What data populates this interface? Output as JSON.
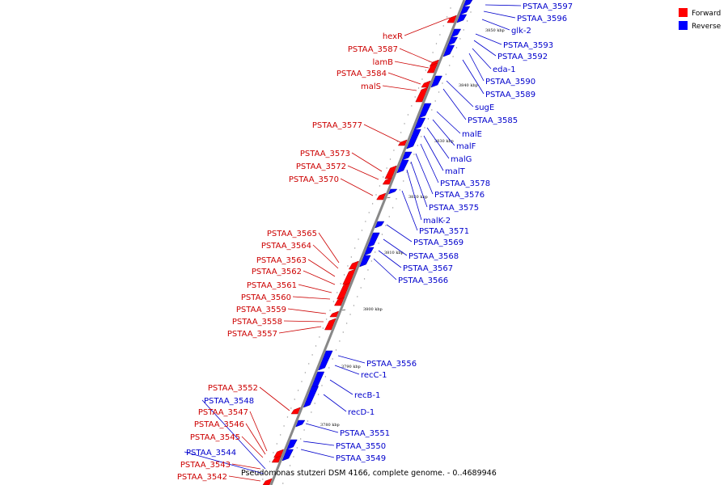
{
  "colors": {
    "forward": "#ff0000",
    "reverse": "#0000ff",
    "backbone": "#888888"
  },
  "legend": [
    {
      "label": "Forward",
      "strand": "forward"
    },
    {
      "label": "Reverse",
      "strand": "reverse"
    }
  ],
  "footer": "Pseudomonas stutzeri DSM 4166, complete genome. - 0..4689946",
  "ticks": [
    "3850 kbp",
    "3840 kbp",
    "3830 kbp",
    "3820 kbp",
    "3810 kbp",
    "3800 kbp",
    "3790 kbp",
    "3780 kbp"
  ],
  "genes_forward": [
    "hexR",
    "PSTAA_3587",
    "lamB",
    "PSTAA_3584",
    "malS",
    "PSTAA_3577",
    "PSTAA_3573",
    "PSTAA_3572",
    "PSTAA_3570",
    "PSTAA_3565",
    "PSTAA_3564",
    "PSTAA_3563",
    "PSTAA_3562",
    "PSTAA_3561",
    "PSTAA_3560",
    "PSTAA_3559",
    "PSTAA_3558",
    "PSTAA_3557",
    "PSTAA_3552",
    "PSTAA_3547",
    "PSTAA_3546",
    "PSTAA_3545",
    "PSTAA_3543",
    "PSTAA_3542"
  ],
  "genes_reverse": [
    "PSTAA_3597",
    "PSTAA_3596",
    "glk-2",
    "PSTAA_3593",
    "PSTAA_3592",
    "eda-1",
    "PSTAA_3590",
    "PSTAA_3589",
    "sugE",
    "PSTAA_3585",
    "malE",
    "malF",
    "malG",
    "malT",
    "PSTAA_3578",
    "PSTAA_3576",
    "PSTAA_3575",
    "malK-2",
    "PSTAA_3571",
    "PSTAA_3569",
    "PSTAA_3568",
    "PSTAA_3567",
    "PSTAA_3566",
    "PSTAA_3556",
    "recC-1",
    "recB-1",
    "recD-1",
    "PSTAA_3551",
    "PSTAA_3550",
    "PSTAA_3549",
    "PSTAA_3548",
    "PSTAA_3544"
  ]
}
